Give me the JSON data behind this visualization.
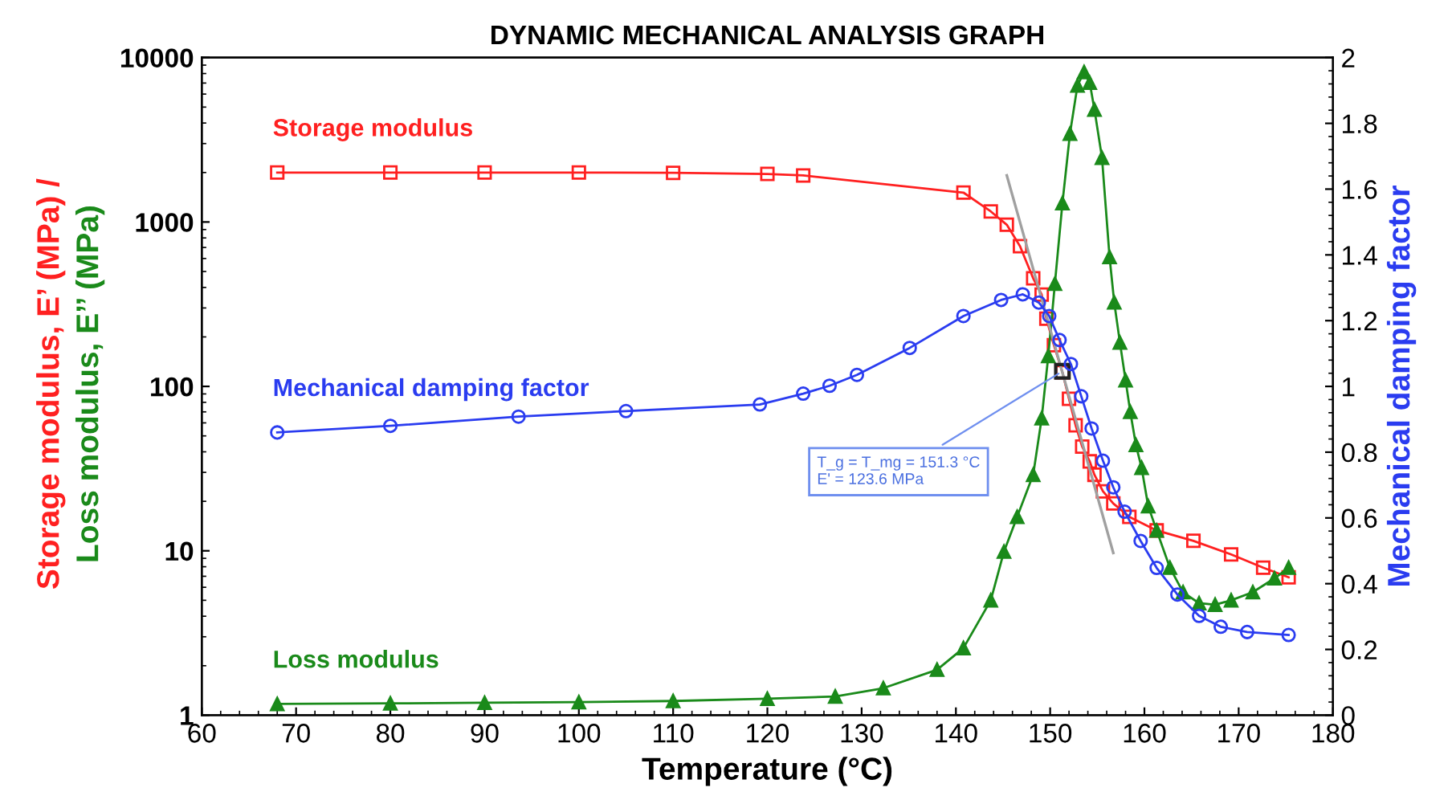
{
  "chart_data": {
    "type": "line",
    "title": "DYNAMIC MECHANICAL ANALYSIS GRAPH",
    "xlabel": "Temperature (°C)",
    "ylabel": "Storage modulus, E’ (MPa) /\nLoss modulus, E’’ (MPa)",
    "y2label": "Mechanical damping factor",
    "log": "y",
    "xlim": [
      60,
      180
    ],
    "xticks": [
      60,
      70,
      80,
      90,
      100,
      110,
      120,
      130,
      140,
      150,
      160,
      170,
      180
    ],
    "ylim": [
      1,
      10000
    ],
    "yticks": [
      1,
      10,
      100,
      1000,
      10000
    ],
    "y2lim": [
      0,
      2
    ],
    "y2ticks": [
      0,
      0.2,
      0.4,
      0.6,
      0.8,
      1,
      1.2,
      1.4,
      1.6,
      1.8,
      2
    ],
    "grid": false,
    "legend": false,
    "annotations": [
      {
        "text": "T_g = T_mg = 151.3 °C\nE' = 123.6 MPa",
        "x": 151.3,
        "y": 123.6
      }
    ],
    "series": [
      {
        "name": "Storage modulus",
        "color": "#ff2020",
        "marker": "square",
        "x": [
          68,
          80,
          90,
          100,
          110,
          120,
          123.8,
          140.8,
          143.7,
          145.4,
          146.8,
          148.2,
          149.1,
          149.6,
          150.4,
          151.3,
          152.0,
          152.7,
          153.4,
          154.2,
          154.7,
          155.6,
          156.7,
          158.4,
          161.3,
          165.2,
          169.2,
          172.6,
          175.3
        ],
        "values": [
          2000,
          2000,
          2000,
          2000,
          1990,
          1960,
          1920,
          1510,
          1160,
          962,
          713,
          454,
          362,
          258,
          178,
          122,
          84,
          58,
          43,
          35,
          29,
          23,
          19.4,
          16.1,
          13.3,
          11.5,
          9.5,
          7.9,
          6.9
        ]
      },
      {
        "name": "Loss modulus",
        "color": "#1a8a1a",
        "marker": "triangle",
        "x": [
          68,
          80,
          90,
          100,
          110,
          120,
          127.2,
          132.3,
          138.0,
          140.8,
          143.7,
          145.1,
          146.5,
          148.2,
          149.1,
          149.8,
          150.5,
          151.3,
          152.1,
          152.9,
          153.6,
          154.2,
          154.7,
          155.5,
          156.3,
          156.8,
          157.4,
          158.0,
          158.5,
          159.1,
          159.7,
          160.4,
          161.3,
          162.7,
          164.1,
          165.8,
          167.5,
          169.2,
          171.5,
          173.8,
          175.3
        ],
        "values": [
          1.17,
          1.18,
          1.19,
          1.2,
          1.22,
          1.26,
          1.3,
          1.46,
          1.89,
          2.56,
          5.0,
          9.9,
          16.1,
          29,
          64,
          153,
          421,
          1300,
          3440,
          6770,
          8170,
          7030,
          4830,
          2460,
          613,
          324,
          185,
          109,
          70,
          44,
          32,
          18.7,
          13.3,
          7.9,
          5.6,
          4.8,
          4.7,
          5.0,
          5.6,
          6.8,
          7.9
        ]
      },
      {
        "name": "Mechanical damping factor",
        "color": "#2a3cf0",
        "marker": "circle",
        "axis": "y2",
        "x": [
          68,
          80,
          93.6,
          105,
          119.2,
          123.8,
          126.6,
          129.5,
          135.1,
          140.8,
          144.8,
          147.1,
          148.8,
          149.9,
          151.0,
          152.2,
          153.3,
          154.4,
          155.6,
          156.7,
          157.9,
          159.6,
          161.3,
          163.5,
          165.8,
          168.1,
          170.9,
          175.3
        ],
        "values": [
          0.86,
          0.88,
          0.908,
          0.925,
          0.945,
          0.978,
          1.002,
          1.035,
          1.117,
          1.214,
          1.263,
          1.28,
          1.255,
          1.214,
          1.141,
          1.068,
          0.97,
          0.872,
          0.774,
          0.693,
          0.619,
          0.53,
          0.448,
          0.367,
          0.302,
          0.269,
          0.253,
          0.244
        ]
      },
      {
        "type": "line",
        "color": "#a0a0a0",
        "marker": "none",
        "x": [
          145.4,
          156.7
        ],
        "values": [
          1920,
          9.7
        ]
      }
    ]
  }
}
